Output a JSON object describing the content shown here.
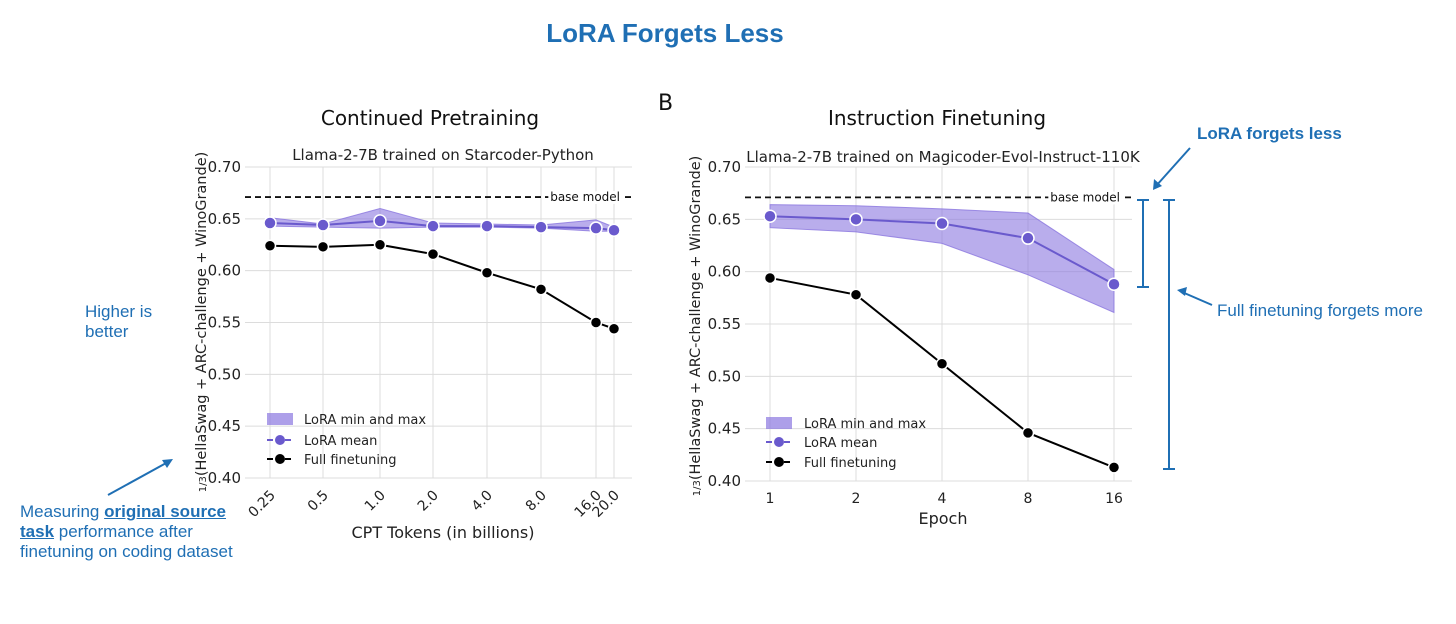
{
  "title": "LoRA Forgets Less",
  "annotations": {
    "higher": "Higher is\nbetter",
    "measuring_pre": "Measuring",
    "measuring_link": "original source task",
    "measuring_post": "performance after finetuning on coding dataset",
    "forgets_less": "LoRA forgets less",
    "forgets_more": "Full finetuning forgets more",
    "panel_b": "B"
  },
  "colors": {
    "accent": "#1f6fb4",
    "lora": "#6a5acd",
    "lora_band": "#8a76df",
    "full": "#000000"
  },
  "chart_data": [
    {
      "type": "line",
      "panel_title": "Continued Pretraining",
      "title": "Llama-2-7B trained on Starcoder-Python",
      "xlabel": "CPT Tokens (in billions)",
      "ylabel": "1/3(HellaSwag + ARC-challenge + WinoGrande)",
      "ylim": [
        0.4,
        0.7
      ],
      "yticks": [
        "0.40",
        "0.45",
        "0.50",
        "0.55",
        "0.60",
        "0.65",
        "0.70"
      ],
      "x": [
        "0.25",
        "0.5",
        "1.0",
        "2.0",
        "4.0",
        "8.0",
        "16.0",
        "20.0"
      ],
      "base_model": 0.671,
      "base_label": "base model",
      "series": [
        {
          "name": "LoRA min and max",
          "type": "band",
          "lower": [
            0.643,
            0.642,
            0.641,
            0.642,
            0.642,
            0.641,
            0.638,
            0.638
          ],
          "upper": [
            0.651,
            0.645,
            0.66,
            0.646,
            0.645,
            0.644,
            0.649,
            0.642
          ]
        },
        {
          "name": "LoRA mean",
          "values": [
            0.646,
            0.644,
            0.648,
            0.643,
            0.643,
            0.642,
            0.641,
            0.639
          ]
        },
        {
          "name": "Full finetuning",
          "values": [
            0.624,
            0.623,
            0.625,
            0.616,
            0.598,
            0.582,
            0.55,
            0.544
          ]
        }
      ],
      "legend": "lower-left",
      "grid": true
    },
    {
      "type": "line",
      "title": "Llama-2-7B trained on Magicoder-Evol-Instruct-110K",
      "panel_title": "Instruction Finetuning",
      "xlabel": "Epoch",
      "ylabel": "1/3(HellaSwag + ARC-challenge + WinoGrande)",
      "ylim": [
        0.4,
        0.7
      ],
      "yticks": [
        "0.40",
        "0.45",
        "0.50",
        "0.55",
        "0.60",
        "0.65",
        "0.70"
      ],
      "x": [
        "1",
        "2",
        "4",
        "8",
        "16"
      ],
      "base_model": 0.671,
      "base_label": "base model",
      "series": [
        {
          "name": "LoRA min and max",
          "type": "band",
          "lower": [
            0.642,
            0.638,
            0.627,
            0.597,
            0.561
          ],
          "upper": [
            0.664,
            0.663,
            0.66,
            0.656,
            0.602
          ]
        },
        {
          "name": "LoRA mean",
          "values": [
            0.653,
            0.65,
            0.646,
            0.632,
            0.588
          ]
        },
        {
          "name": "Full finetuning",
          "values": [
            0.594,
            0.578,
            0.512,
            0.446,
            0.413
          ]
        }
      ],
      "legend": "lower-left",
      "grid": true
    }
  ]
}
